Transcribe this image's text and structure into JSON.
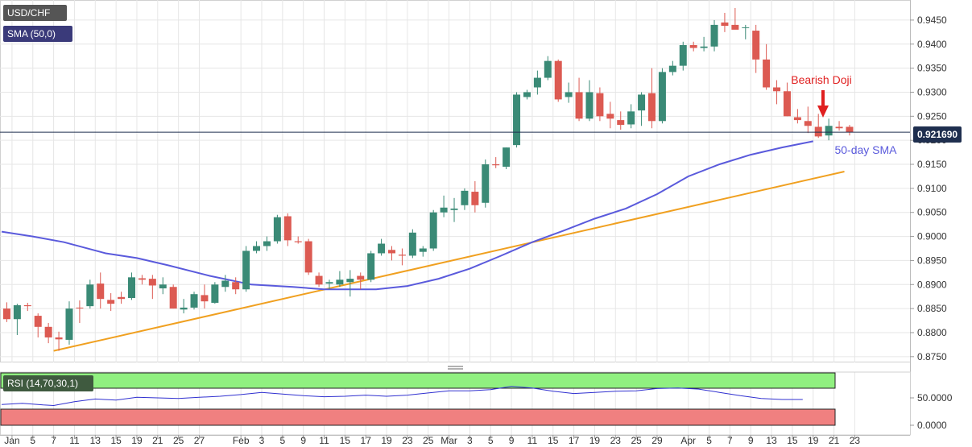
{
  "header": {
    "symbol": "USD/CHF",
    "indicator": "SMA (50,0)"
  },
  "rsi_panel": {
    "label": "RSI (14,70,30,1)",
    "yticks": [
      "50.0000",
      "0.0000"
    ],
    "overbought": 70,
    "oversold": 30,
    "fill_top": "#90f080",
    "fill_bottom": "#f08080",
    "line_color": "#3030d0"
  },
  "chart_data": {
    "type": "candlestick",
    "symbol": "USD/CHF",
    "interval": "daily",
    "ylim": [
      0.8735,
      0.9475
    ],
    "yticks": [
      "0.9450",
      "0.9400",
      "0.9350",
      "0.9300",
      "0.9250",
      "0.9200",
      "0.9150",
      "0.9100",
      "0.9050",
      "0.9000",
      "0.8950",
      "0.8900",
      "0.8850",
      "0.8800",
      "0.8750"
    ],
    "xticks": [
      {
        "label": "Jan",
        "t": 1
      },
      {
        "label": "5",
        "t": 3
      },
      {
        "label": "7",
        "t": 5
      },
      {
        "label": "11",
        "t": 7
      },
      {
        "label": "13",
        "t": 9
      },
      {
        "label": "15",
        "t": 11
      },
      {
        "label": "19",
        "t": 13
      },
      {
        "label": "21",
        "t": 15
      },
      {
        "label": "25",
        "t": 17
      },
      {
        "label": "27",
        "t": 19
      },
      {
        "label": "Feb",
        "t": 23
      },
      {
        "label": "3",
        "t": 25
      },
      {
        "label": "5",
        "t": 27
      },
      {
        "label": "9",
        "t": 29
      },
      {
        "label": "11",
        "t": 31
      },
      {
        "label": "15",
        "t": 33
      },
      {
        "label": "17",
        "t": 35
      },
      {
        "label": "19",
        "t": 37
      },
      {
        "label": "23",
        "t": 39
      },
      {
        "label": "25",
        "t": 41
      },
      {
        "label": "Mar",
        "t": 43
      },
      {
        "label": "3",
        "t": 45
      },
      {
        "label": "5",
        "t": 47
      },
      {
        "label": "9",
        "t": 49
      },
      {
        "label": "11",
        "t": 51
      },
      {
        "label": "15",
        "t": 53
      },
      {
        "label": "17",
        "t": 55
      },
      {
        "label": "19",
        "t": 57
      },
      {
        "label": "23",
        "t": 59
      },
      {
        "label": "25",
        "t": 61
      },
      {
        "label": "29",
        "t": 63
      },
      {
        "label": "Apr",
        "t": 66
      },
      {
        "label": "5",
        "t": 68
      },
      {
        "label": "7",
        "t": 70
      },
      {
        "label": "9",
        "t": 72
      },
      {
        "label": "13",
        "t": 74
      },
      {
        "label": "15",
        "t": 76
      },
      {
        "label": "19",
        "t": 78
      },
      {
        "label": "21",
        "t": 80
      },
      {
        "label": "23",
        "t": 82
      }
    ],
    "candles": [
      [
        0.885,
        0.8863,
        0.8822,
        0.8828
      ],
      [
        0.8828,
        0.886,
        0.8795,
        0.8857
      ],
      [
        0.8857,
        0.8862,
        0.8845,
        0.8855
      ],
      [
        0.8835,
        0.884,
        0.879,
        0.8812
      ],
      [
        0.8812,
        0.882,
        0.8778,
        0.879
      ],
      [
        0.879,
        0.8802,
        0.8762,
        0.8786
      ],
      [
        0.8785,
        0.8865,
        0.8775,
        0.885
      ],
      [
        0.8852,
        0.8867,
        0.882,
        0.8851
      ],
      [
        0.8855,
        0.891,
        0.885,
        0.89
      ],
      [
        0.8902,
        0.8925,
        0.885,
        0.887
      ],
      [
        0.8868,
        0.8882,
        0.8845,
        0.886
      ],
      [
        0.8874,
        0.8885,
        0.886,
        0.887
      ],
      [
        0.8872,
        0.8925,
        0.8868,
        0.8915
      ],
      [
        0.8913,
        0.892,
        0.89,
        0.891
      ],
      [
        0.8912,
        0.892,
        0.887,
        0.8898
      ],
      [
        0.8892,
        0.8915,
        0.888,
        0.89
      ],
      [
        0.8895,
        0.89,
        0.885,
        0.885
      ],
      [
        0.8848,
        0.887,
        0.884,
        0.8852
      ],
      [
        0.8852,
        0.8885,
        0.8848,
        0.888
      ],
      [
        0.8878,
        0.89,
        0.885,
        0.8865
      ],
      [
        0.8862,
        0.8905,
        0.886,
        0.89
      ],
      [
        0.8895,
        0.892,
        0.8885,
        0.8908
      ],
      [
        0.8905,
        0.8915,
        0.888,
        0.889
      ],
      [
        0.889,
        0.898,
        0.8885,
        0.897
      ],
      [
        0.897,
        0.899,
        0.8965,
        0.898
      ],
      [
        0.898,
        0.9,
        0.897,
        0.899
      ],
      [
        0.899,
        0.9045,
        0.8985,
        0.904
      ],
      [
        0.9042,
        0.9048,
        0.898,
        0.8992
      ],
      [
        0.899,
        0.9,
        0.8985,
        0.8988
      ],
      [
        0.899,
        0.8995,
        0.892,
        0.8925
      ],
      [
        0.8918,
        0.8925,
        0.8895,
        0.89
      ],
      [
        0.8902,
        0.891,
        0.889,
        0.8905
      ],
      [
        0.89,
        0.8928,
        0.8895,
        0.891
      ],
      [
        0.8905,
        0.893,
        0.8875,
        0.8912
      ],
      [
        0.8918,
        0.8925,
        0.889,
        0.891
      ],
      [
        0.891,
        0.897,
        0.8905,
        0.8965
      ],
      [
        0.8965,
        0.8995,
        0.896,
        0.8985
      ],
      [
        0.8972,
        0.898,
        0.895,
        0.8965
      ],
      [
        0.8962,
        0.8975,
        0.894,
        0.896
      ],
      [
        0.896,
        0.9015,
        0.8955,
        0.9008
      ],
      [
        0.8968,
        0.898,
        0.8958,
        0.8975
      ],
      [
        0.8975,
        0.9055,
        0.897,
        0.905
      ],
      [
        0.905,
        0.9085,
        0.904,
        0.906
      ],
      [
        0.9055,
        0.908,
        0.903,
        0.9058
      ],
      [
        0.9065,
        0.91,
        0.9055,
        0.9095
      ],
      [
        0.9093,
        0.9115,
        0.905,
        0.9065
      ],
      [
        0.907,
        0.916,
        0.906,
        0.915
      ],
      [
        0.915,
        0.9165,
        0.9142,
        0.9148
      ],
      [
        0.9145,
        0.9185,
        0.914,
        0.9185
      ],
      [
        0.919,
        0.93,
        0.9185,
        0.9295
      ],
      [
        0.929,
        0.9305,
        0.9285,
        0.93
      ],
      [
        0.931,
        0.9345,
        0.9295,
        0.933
      ],
      [
        0.933,
        0.9375,
        0.9325,
        0.9365
      ],
      [
        0.9365,
        0.9368,
        0.928,
        0.9285
      ],
      [
        0.929,
        0.932,
        0.9278,
        0.93
      ],
      [
        0.93,
        0.933,
        0.924,
        0.9245
      ],
      [
        0.9245,
        0.9325,
        0.924,
        0.93
      ],
      [
        0.9298,
        0.931,
        0.924,
        0.925
      ],
      [
        0.9255,
        0.928,
        0.9225,
        0.9245
      ],
      [
        0.9242,
        0.926,
        0.9222,
        0.9232
      ],
      [
        0.9233,
        0.9275,
        0.9225,
        0.926
      ],
      [
        0.9262,
        0.93,
        0.923,
        0.9295
      ],
      [
        0.9298,
        0.935,
        0.9225,
        0.924
      ],
      [
        0.924,
        0.935,
        0.9235,
        0.9342
      ],
      [
        0.9342,
        0.9365,
        0.9335,
        0.9355
      ],
      [
        0.9355,
        0.9405,
        0.9345,
        0.9398
      ],
      [
        0.9398,
        0.9405,
        0.9385,
        0.9392
      ],
      [
        0.9392,
        0.9415,
        0.9385,
        0.9395
      ],
      [
        0.9395,
        0.945,
        0.9385,
        0.944
      ],
      [
        0.9445,
        0.9465,
        0.9425,
        0.9438
      ],
      [
        0.944,
        0.9475,
        0.9432,
        0.943
      ],
      [
        0.9435,
        0.944,
        0.941,
        0.9435
      ],
      [
        0.9428,
        0.944,
        0.934,
        0.9368
      ],
      [
        0.9368,
        0.94,
        0.9305,
        0.931
      ],
      [
        0.931,
        0.9325,
        0.9275,
        0.9302
      ],
      [
        0.9302,
        0.932,
        0.925,
        0.925
      ],
      [
        0.9248,
        0.9265,
        0.9235,
        0.9242
      ],
      [
        0.924,
        0.927,
        0.9215,
        0.923
      ],
      [
        0.9228,
        0.9255,
        0.9205,
        0.9208
      ],
      [
        0.921,
        0.9245,
        0.92,
        0.923
      ],
      [
        0.9228,
        0.924,
        0.922,
        0.9225
      ],
      [
        0.9228,
        0.9232,
        0.921,
        0.9217
      ]
    ],
    "series": [
      {
        "name": "50-day SMA",
        "color": "#5a5adc",
        "points": [
          [
            0,
            0.901
          ],
          [
            3,
            0.9
          ],
          [
            6,
            0.8988
          ],
          [
            10,
            0.8965
          ],
          [
            13,
            0.8955
          ],
          [
            16,
            0.894
          ],
          [
            20,
            0.8918
          ],
          [
            24,
            0.89
          ],
          [
            28,
            0.8895
          ],
          [
            31,
            0.889
          ],
          [
            33,
            0.889
          ],
          [
            36,
            0.889
          ],
          [
            39,
            0.8897
          ],
          [
            42,
            0.8912
          ],
          [
            45,
            0.8933
          ],
          [
            48,
            0.896
          ],
          [
            51,
            0.8988
          ],
          [
            54,
            0.9012
          ],
          [
            57,
            0.9037
          ],
          [
            60,
            0.9058
          ],
          [
            63,
            0.9088
          ],
          [
            66,
            0.9125
          ],
          [
            69,
            0.915
          ],
          [
            72,
            0.917
          ],
          [
            75,
            0.9185
          ],
          [
            78,
            0.9198
          ]
        ]
      }
    ],
    "trendlines": [
      {
        "color": "#f0a020",
        "from": [
          5,
          0.8762
        ],
        "to": [
          81,
          0.9135
        ]
      }
    ],
    "rsi": [
      [
        0,
        38
      ],
      [
        2,
        40
      ],
      [
        4,
        37
      ],
      [
        5,
        36
      ],
      [
        7,
        43
      ],
      [
        9,
        48
      ],
      [
        11,
        46
      ],
      [
        13,
        51
      ],
      [
        15,
        50
      ],
      [
        17,
        49
      ],
      [
        19,
        51
      ],
      [
        21,
        53
      ],
      [
        23,
        56
      ],
      [
        25,
        60
      ],
      [
        27,
        57
      ],
      [
        29,
        54
      ],
      [
        31,
        52
      ],
      [
        33,
        53
      ],
      [
        35,
        55
      ],
      [
        37,
        53
      ],
      [
        39,
        55
      ],
      [
        41,
        59
      ],
      [
        43,
        63
      ],
      [
        45,
        63
      ],
      [
        47,
        65
      ],
      [
        49,
        71
      ],
      [
        51,
        68
      ],
      [
        53,
        62
      ],
      [
        55,
        58
      ],
      [
        57,
        60
      ],
      [
        59,
        62
      ],
      [
        61,
        63
      ],
      [
        63,
        67
      ],
      [
        65,
        68
      ],
      [
        67,
        66
      ],
      [
        69,
        60
      ],
      [
        71,
        54
      ],
      [
        73,
        49
      ],
      [
        75,
        47
      ],
      [
        77,
        47
      ]
    ],
    "current_price": "0.921690",
    "current_price_level": 0.92169,
    "annotations": [
      {
        "text": "Bearish Doji",
        "color": "#e02020"
      },
      {
        "text": "50-day SMA",
        "color": "#5a5adc"
      }
    ],
    "colors": {
      "up": "#3a8a76",
      "down": "#dc5a52",
      "grid": "#e6e6e6"
    }
  }
}
